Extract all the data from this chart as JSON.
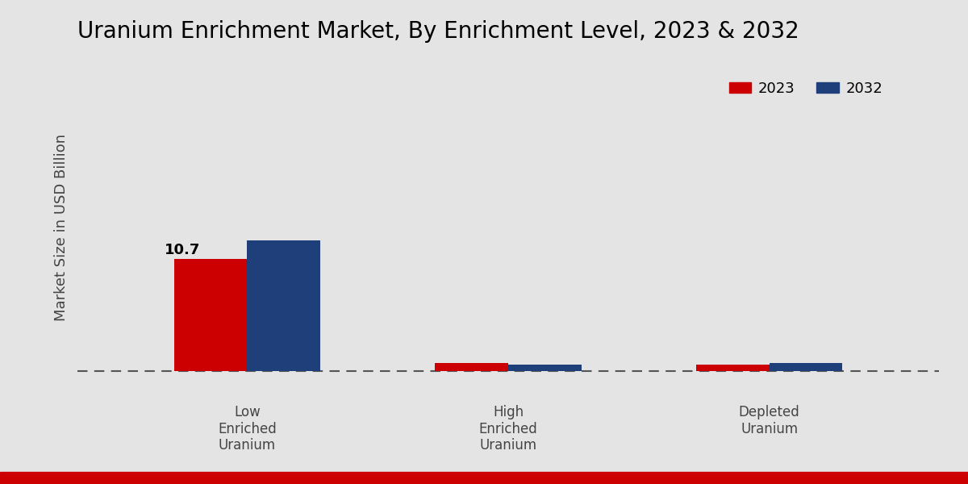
{
  "title": "Uranium Enrichment Market, By Enrichment Level, 2023 & 2032",
  "ylabel": "Market Size in USD Billion",
  "categories": [
    "Low\nEnriched\nUranium",
    "High\nEnriched\nUranium",
    "Depleted\nUranium"
  ],
  "values_2023": [
    10.7,
    0.72,
    0.6
  ],
  "values_2032": [
    12.5,
    0.6,
    0.72
  ],
  "color_2023": "#CC0000",
  "color_2032": "#1F3F7A",
  "annotation_label": "10.7",
  "background_color": "#E4E4E4",
  "legend_labels": [
    "2023",
    "2032"
  ],
  "bar_width": 0.28,
  "ylim": [
    -2.5,
    30
  ],
  "title_fontsize": 20,
  "ylabel_fontsize": 13,
  "tick_fontsize": 12,
  "legend_fontsize": 13,
  "annotation_fontsize": 13,
  "red_bar_color": "#CC0000",
  "gradient_top": "#D8D8D8",
  "gradient_bottom": "#EBEBEB"
}
